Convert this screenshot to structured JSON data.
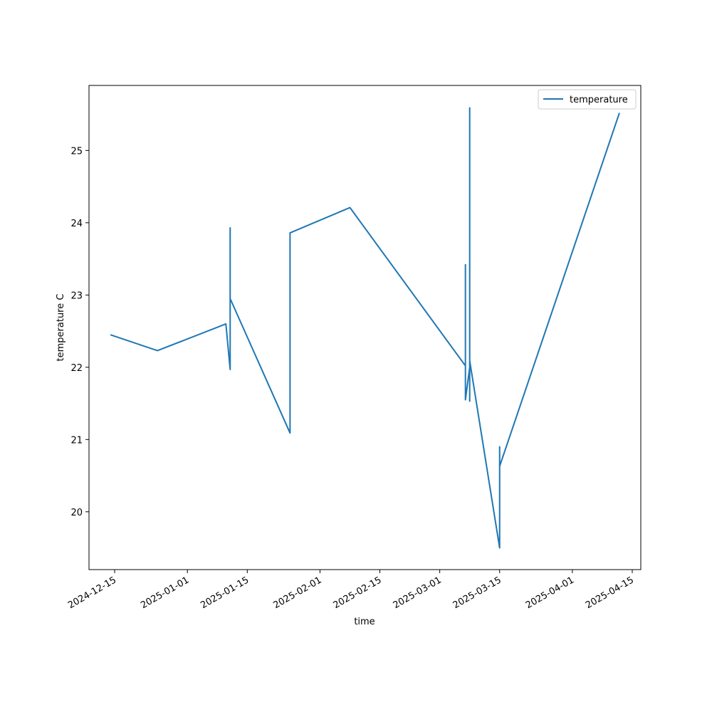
{
  "chart_data": {
    "type": "line",
    "title": "",
    "xlabel": "time",
    "ylabel": "temperature C",
    "x_ticks": [
      "2024-12-15",
      "2025-01-01",
      "2025-01-15",
      "2025-02-01",
      "2025-02-15",
      "2025-03-01",
      "2025-03-15",
      "2025-04-01",
      "2025-04-15"
    ],
    "y_ticks": [
      20,
      21,
      22,
      23,
      24,
      25
    ],
    "xlim": [
      "2024-12-09",
      "2025-04-17"
    ],
    "ylim": [
      19.2,
      25.9
    ],
    "grid": false,
    "legend": "top-right",
    "series": [
      {
        "name": "temperature",
        "color": "#1f77b4",
        "points": [
          {
            "x": "2024-12-14",
            "y": 22.45
          },
          {
            "x": "2024-12-25",
            "y": 22.23
          },
          {
            "x": "2025-01-10",
            "y": 22.6
          },
          {
            "x": "2025-01-11",
            "y": 21.97
          },
          {
            "x": "2025-01-11",
            "y": 23.93
          },
          {
            "x": "2025-01-11",
            "y": 22.95
          },
          {
            "x": "2025-01-25",
            "y": 21.09
          },
          {
            "x": "2025-01-25",
            "y": 22.92
          },
          {
            "x": "2025-01-25",
            "y": 21.95
          },
          {
            "x": "2025-01-25",
            "y": 23.86
          },
          {
            "x": "2025-02-08",
            "y": 24.21
          },
          {
            "x": "2025-03-07",
            "y": 22.02
          },
          {
            "x": "2025-03-07",
            "y": 23.42
          },
          {
            "x": "2025-03-07",
            "y": 21.55
          },
          {
            "x": "2025-03-08",
            "y": 22.0
          },
          {
            "x": "2025-03-08",
            "y": 21.53
          },
          {
            "x": "2025-03-08",
            "y": 25.59
          },
          {
            "x": "2025-03-08",
            "y": 22.09
          },
          {
            "x": "2025-03-15",
            "y": 19.5
          },
          {
            "x": "2025-03-15",
            "y": 20.9
          },
          {
            "x": "2025-03-15",
            "y": 20.63
          },
          {
            "x": "2025-04-12",
            "y": 25.52
          }
        ]
      }
    ]
  }
}
